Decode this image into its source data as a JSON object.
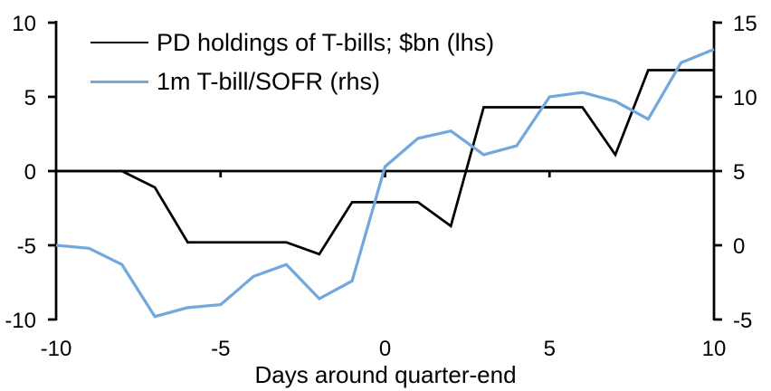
{
  "chart_data": {
    "type": "line",
    "title": "",
    "xlabel": "Days around quarter-end",
    "x_range": [
      -10,
      10
    ],
    "x": [
      -10,
      -9,
      -8,
      -7,
      -6,
      -5,
      -4,
      -3,
      -2,
      -1,
      0,
      1,
      2,
      3,
      4,
      5,
      6,
      7,
      8,
      9,
      10
    ],
    "x_ticks": [
      -10,
      -5,
      0,
      5,
      10
    ],
    "y_left": {
      "ticks": [
        10,
        5,
        0,
        -5,
        -10
      ],
      "range": [
        -10,
        10
      ]
    },
    "y_right": {
      "ticks": [
        15,
        10,
        5,
        0,
        -5
      ],
      "range": [
        -5,
        15
      ]
    },
    "grid": false,
    "legend_position": "top-left",
    "background_color": "#FFFFFF",
    "axis_color": "#000000",
    "series": [
      {
        "name": "PD holdings of T-bills; $bn (lhs)",
        "axis": "left",
        "color": "#000000",
        "line_width": 2.75,
        "values": [
          0,
          0,
          0,
          -1.1,
          -4.8,
          -4.8,
          -4.8,
          -4.8,
          -5.6,
          -2.1,
          -2.1,
          -2.1,
          -3.7,
          4.3,
          4.3,
          4.3,
          4.3,
          1.1,
          6.8,
          6.8,
          6.8
        ]
      },
      {
        "name": "1m T-bill/SOFR (rhs)",
        "axis": "right",
        "color": "#74A7DC",
        "line_width": 3.25,
        "values": [
          0,
          -0.2,
          -1.3,
          -4.8,
          -4.2,
          -4.0,
          -2.1,
          -1.3,
          -3.6,
          -2.4,
          5.3,
          7.2,
          7.7,
          6.1,
          6.7,
          10.0,
          10.3,
          9.7,
          8.5,
          12.3,
          13.2
        ]
      }
    ]
  }
}
